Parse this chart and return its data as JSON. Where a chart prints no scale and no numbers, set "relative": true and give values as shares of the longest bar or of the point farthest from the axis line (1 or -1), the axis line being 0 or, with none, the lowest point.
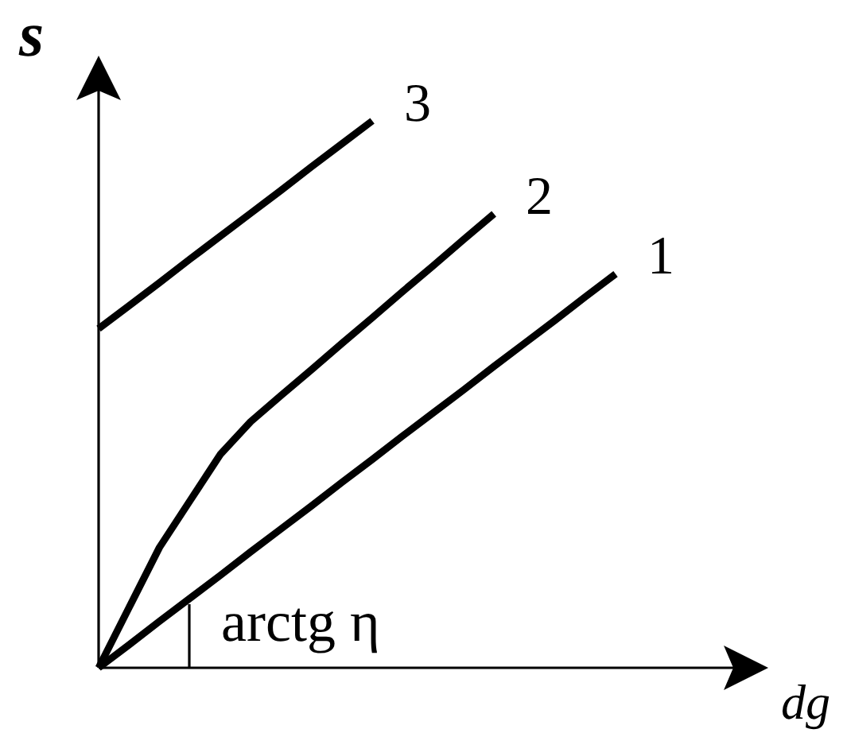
{
  "chart_data": {
    "type": "line",
    "xlabel": "dg",
    "ylabel": "s",
    "relative": true,
    "tick_labels": false,
    "marker": "none",
    "line_style": "solid",
    "categories": [
      null,
      null,
      null,
      null,
      null,
      null,
      null,
      null,
      null,
      null,
      null,
      null,
      null,
      null,
      null,
      null,
      null,
      null
    ],
    "series": [
      {
        "name": "1",
        "color": "#000000",
        "values": [
          0,
          0.042,
          0.085,
          0.127,
          0.169,
          0.212,
          0.254,
          0.296,
          0.339,
          0.381,
          0.424,
          0.466,
          0.508,
          0.551,
          0.593,
          0.635,
          0.678,
          0.72
        ]
      },
      {
        "name": "2",
        "color": "#000000",
        "values": [
          0,
          0.11,
          0.22,
          0.305,
          0.39,
          0.45,
          0.498,
          0.545,
          0.593,
          0.64,
          0.688,
          0.735,
          0.783,
          0.83,
          null,
          null,
          null,
          null
        ]
      },
      {
        "name": "3",
        "color": "#000000",
        "values": [
          0.62,
          0.662,
          0.704,
          0.747,
          0.789,
          0.831,
          0.873,
          0.916,
          0.958,
          1,
          null,
          null,
          null,
          null,
          null,
          null,
          null,
          null
        ]
      }
    ],
    "annotations": [
      "arctg η"
    ]
  }
}
